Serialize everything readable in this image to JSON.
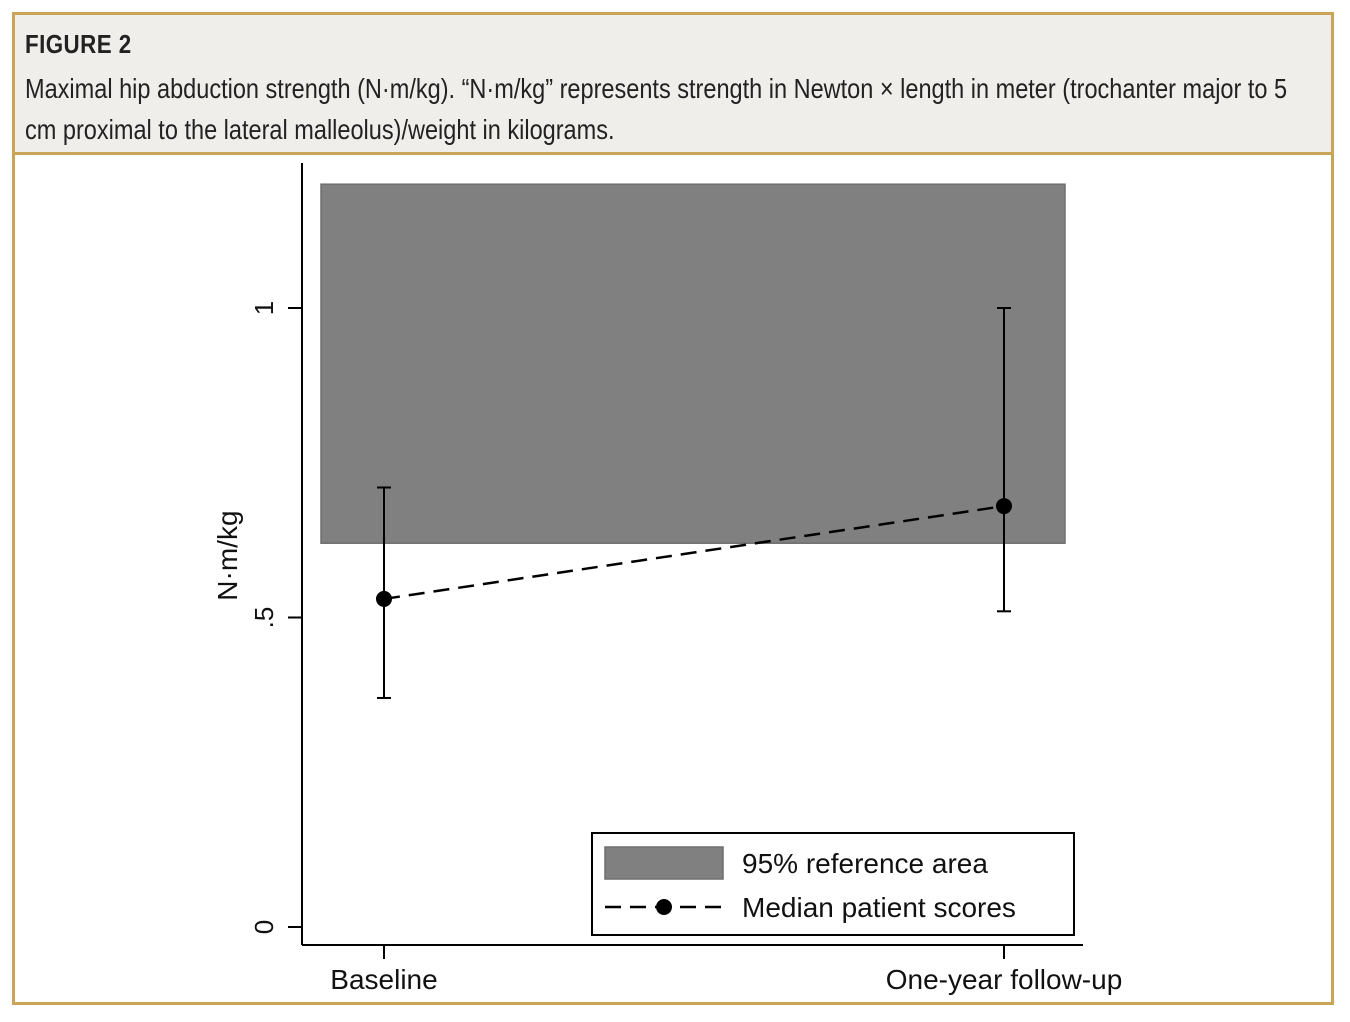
{
  "figure": {
    "label": "FIGURE 2",
    "caption": "Maximal hip abduction strength (N·m/kg). “N·m/kg” represents strength in Newton × length in meter (trochanter major to 5 cm proximal to the lateral malleolus)/weight in kilograms."
  },
  "chart_data": {
    "type": "line",
    "categories": [
      "Baseline",
      "One-year follow-up"
    ],
    "ylabel": "N·m/kg",
    "ylim": [
      0,
      1.2
    ],
    "yticks": [
      0,
      0.5,
      1
    ],
    "ytick_labels": [
      "0",
      ".5",
      "1"
    ],
    "reference_area": {
      "name": "95% reference area",
      "ymin": 0.62,
      "ymax": 1.2,
      "color": "#808080"
    },
    "series": [
      {
        "name": "Median patient scores",
        "values": [
          0.53,
          0.68
        ],
        "error_low": [
          0.37,
          0.51
        ],
        "error_high": [
          0.71,
          1.0
        ],
        "style": "dashed",
        "color": "#000000"
      }
    ],
    "legend": [
      "95% reference area",
      "Median patient scores"
    ],
    "legend_position": "bottom-right",
    "grid": false
  }
}
